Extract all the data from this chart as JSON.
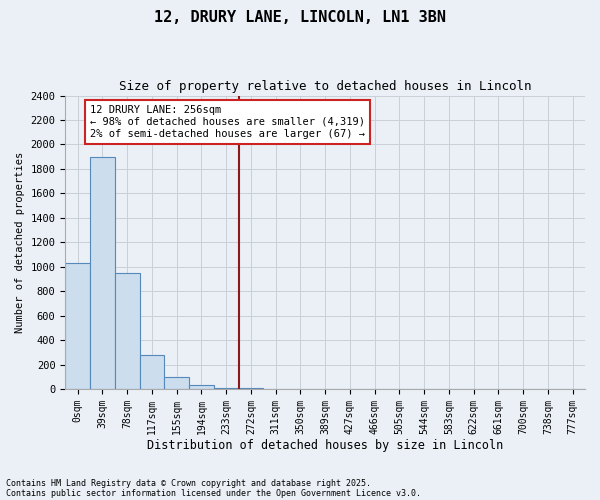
{
  "title_line1": "12, DRURY LANE, LINCOLN, LN1 3BN",
  "title_line2": "Size of property relative to detached houses in Lincoln",
  "xlabel": "Distribution of detached houses by size in Lincoln",
  "ylabel": "Number of detached properties",
  "bar_color": "#ccdded",
  "bar_edge_color": "#5588bb",
  "vline_color": "#8b1a1a",
  "categories": [
    "0sqm",
    "39sqm",
    "78sqm",
    "117sqm",
    "155sqm",
    "194sqm",
    "233sqm",
    "272sqm",
    "311sqm",
    "350sqm",
    "389sqm",
    "427sqm",
    "466sqm",
    "505sqm",
    "544sqm",
    "583sqm",
    "622sqm",
    "661sqm",
    "700sqm",
    "738sqm",
    "777sqm"
  ],
  "values": [
    1030,
    1900,
    950,
    280,
    100,
    30,
    10,
    5,
    0,
    0,
    0,
    0,
    0,
    0,
    0,
    0,
    0,
    0,
    0,
    0,
    0
  ],
  "vline_x": 6.5,
  "ylim": [
    0,
    2400
  ],
  "yticks": [
    0,
    200,
    400,
    600,
    800,
    1000,
    1200,
    1400,
    1600,
    1800,
    2000,
    2200,
    2400
  ],
  "annotation_text": "12 DRURY LANE: 256sqm\n← 98% of detached houses are smaller (4,319)\n2% of semi-detached houses are larger (67) →",
  "grid_color": "#c8d0d8",
  "background_color": "#eaf0f6",
  "footer_line1": "Contains HM Land Registry data © Crown copyright and database right 2025.",
  "footer_line2": "Contains public sector information licensed under the Open Government Licence v3.0."
}
